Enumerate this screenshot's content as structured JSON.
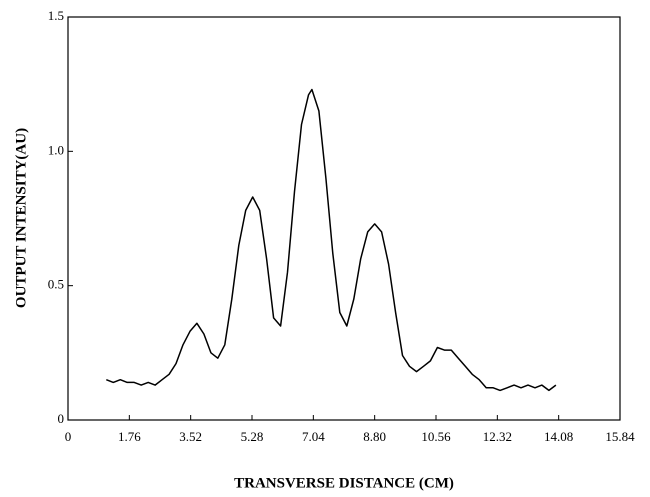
{
  "chart_data": {
    "type": "line",
    "xlabel": "TRANSVERSE DISTANCE (CM)",
    "ylabel": "OUTPUT INTENSITY(AU)",
    "xlim": [
      0,
      15.84
    ],
    "xticks": [
      0,
      1.76,
      3.52,
      5.28,
      7.04,
      {
        "value": 8.8,
        "label": "8.80"
      },
      10.56,
      12.32,
      14.08,
      15.84
    ],
    "ylim": [
      0,
      1.5
    ],
    "yticks": [
      0,
      0.5,
      {
        "value": 1.0,
        "label": "1.0"
      },
      1.5
    ],
    "series": [
      {
        "color": "#000000",
        "x": [
          1.1,
          1.3,
          1.5,
          1.7,
          1.9,
          2.1,
          2.3,
          2.5,
          2.7,
          2.9,
          3.1,
          3.3,
          3.5,
          3.7,
          3.9,
          4.1,
          4.3,
          4.5,
          4.7,
          4.9,
          5.1,
          5.3,
          5.5,
          5.7,
          5.9,
          6.1,
          6.3,
          6.5,
          6.7,
          6.9,
          7.0,
          7.2,
          7.4,
          7.6,
          7.8,
          8.0,
          8.2,
          8.4,
          8.6,
          8.8,
          9.0,
          9.2,
          9.4,
          9.6,
          9.8,
          10.0,
          10.2,
          10.4,
          10.6,
          10.8,
          11.0,
          11.2,
          11.4,
          11.6,
          11.8,
          12.0,
          12.2,
          12.4,
          12.6,
          12.8,
          13.0,
          13.2,
          13.4,
          13.6,
          13.8,
          14.0
        ],
        "values": [
          0.15,
          0.14,
          0.15,
          0.14,
          0.14,
          0.13,
          0.14,
          0.13,
          0.15,
          0.17,
          0.21,
          0.28,
          0.33,
          0.36,
          0.32,
          0.25,
          0.23,
          0.28,
          0.45,
          0.65,
          0.78,
          0.83,
          0.78,
          0.6,
          0.38,
          0.35,
          0.55,
          0.85,
          1.1,
          1.21,
          1.23,
          1.15,
          0.9,
          0.62,
          0.4,
          0.35,
          0.45,
          0.6,
          0.7,
          0.73,
          0.7,
          0.58,
          0.4,
          0.24,
          0.2,
          0.18,
          0.2,
          0.22,
          0.27,
          0.26,
          0.26,
          0.23,
          0.2,
          0.17,
          0.15,
          0.12,
          0.12,
          0.11,
          0.12,
          0.13,
          0.12,
          0.13,
          0.12,
          0.13,
          0.11,
          0.13
        ]
      }
    ]
  }
}
